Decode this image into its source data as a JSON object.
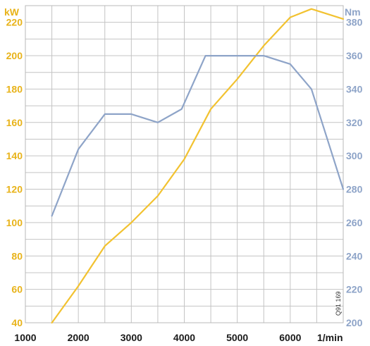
{
  "chart_data": {
    "type": "line",
    "title": "",
    "xlabel": "1/min",
    "ylabel_left": "kW",
    "ylabel_right": "Nm",
    "xlim": [
      1000,
      7000
    ],
    "ylim_left": [
      40,
      230
    ],
    "ylim_right": [
      200,
      390
    ],
    "x_ticks": [
      "1000",
      "2000",
      "3000",
      "4000",
      "5000",
      "6000"
    ],
    "y_left_ticks": [
      "40",
      "60",
      "80",
      "100",
      "120",
      "140",
      "160",
      "180",
      "200",
      "220"
    ],
    "y_right_ticks": [
      "200",
      "220",
      "240",
      "260",
      "280",
      "300",
      "320",
      "340",
      "360",
      "380"
    ],
    "grid": true,
    "series": [
      {
        "axis": "left",
        "color": "#f2c230",
        "x": [
          1500,
          2000,
          2500,
          3000,
          3500,
          4000,
          4500,
          5000,
          5500,
          6000,
          6400,
          7000
        ],
        "y": [
          40,
          62,
          86,
          100,
          116,
          138,
          168,
          186,
          206,
          223,
          228,
          222
        ]
      },
      {
        "axis": "right",
        "color": "#8ea4c8",
        "x": [
          1500,
          2000,
          2500,
          3000,
          3500,
          3950,
          4400,
          4600,
          5500,
          6000,
          6400,
          6800,
          7000
        ],
        "y": [
          264,
          304,
          325,
          325,
          320,
          328,
          360,
          360,
          360,
          355,
          340,
          300,
          280
        ]
      }
    ],
    "annotation": "Q91 169"
  }
}
